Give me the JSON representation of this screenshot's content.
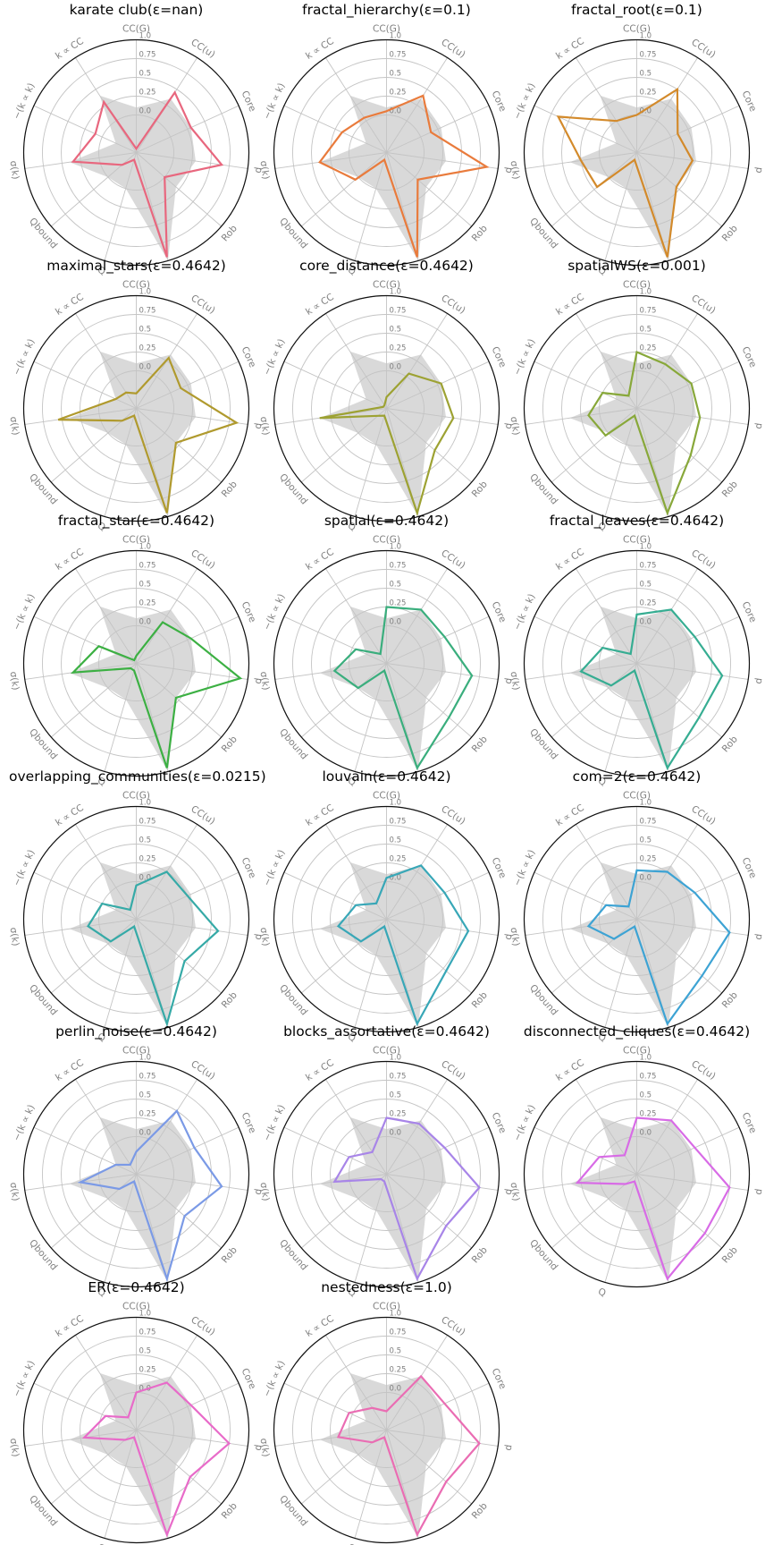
{
  "chart_data": {
    "type": "radar",
    "axes": [
      "CC(G)",
      "CC(u)",
      "Core",
      "d",
      "Rob",
      "",
      "Q",
      "Q_bound",
      "σ(k)",
      "−(k∝k)",
      "k∝CC"
    ],
    "axis_display": [
      "CC(G)",
      "CC(u)",
      "Core",
      "d",
      "Rob",
      "",
      "Q",
      "Qbound",
      "σ(k)",
      "−(k ∝ k)",
      "k ∝ CC"
    ],
    "radial_ticks": [
      "0.0",
      "0.25",
      "0.5",
      "0.75",
      "1.0"
    ],
    "radial_tick_values": [
      0,
      0.25,
      0.5,
      0.75,
      1.0
    ],
    "rlim": [
      -0.5,
      1.0
    ],
    "grid": true,
    "reference_values": [
      0.1,
      0.35,
      0.3,
      0.3,
      0.2,
      1.0,
      0.0,
      0.0,
      0.4,
      -0.2,
      0.4
    ],
    "panels": [
      {
        "title": "karate club(ε=nan)",
        "color": "#e8677e",
        "values": [
          -0.45,
          0.45,
          0.3,
          0.65,
          0.0,
          0.95,
          -0.4,
          -0.25,
          0.35,
          0.1,
          0.3
        ]
      },
      {
        "title": "fractal_hierarchy(ε=0.1)",
        "color": "#e97b3c",
        "values": [
          0.05,
          0.4,
          0.15,
          0.85,
          0.05,
          0.95,
          -0.4,
          0.05,
          0.4,
          0.15,
          0.05
        ]
      },
      {
        "title": "fractal_root(ε=0.1)",
        "color": "#d38a2b",
        "values": [
          0.0,
          0.5,
          0.1,
          0.25,
          0.2,
          0.95,
          -0.4,
          0.2,
          0.25,
          0.65,
          0.0
        ]
      },
      {
        "title": "maximal_stars(ε=0.4642)",
        "color": "#b09a2e",
        "values": [
          -0.3,
          0.3,
          0.15,
          0.85,
          0.2,
          0.95,
          -0.4,
          -0.25,
          0.55,
          -0.2,
          -0.25
        ]
      },
      {
        "title": "core_distance(ε=0.4642)",
        "color": "#9da233",
        "values": [
          -0.35,
          0.05,
          0.3,
          0.4,
          0.35,
          0.95,
          -0.4,
          -0.35,
          0.4,
          -0.45,
          -0.45
        ]
      },
      {
        "title": "spatialWS(ε=0.001)",
        "color": "#88a83a",
        "values": [
          0.25,
          0.2,
          0.3,
          0.35,
          0.45,
          0.95,
          -0.4,
          0.05,
          0.15,
          0.0,
          -0.3
        ]
      },
      {
        "title": "fractal_star(ε=0.4642)",
        "color": "#3cb043",
        "values": [
          -0.4,
          0.15,
          0.3,
          0.9,
          0.2,
          0.95,
          -0.4,
          -0.4,
          0.35,
          0.05,
          -0.45
        ]
      },
      {
        "title": "spatial(ε=0.4642)",
        "color": "#3aae7d",
        "values": [
          0.25,
          0.35,
          0.35,
          0.65,
          0.6,
          0.95,
          -0.4,
          0.0,
          0.2,
          -0.05,
          -0.35
        ]
      },
      {
        "title": "fractal_leaves(ε=0.4642)",
        "color": "#36ad92",
        "values": [
          0.15,
          0.35,
          0.35,
          0.65,
          0.6,
          0.95,
          -0.4,
          -0.05,
          0.25,
          0.0,
          -0.35
        ]
      },
      {
        "title": "overlapping_communities(ε=0.0215)",
        "color": "#36aaa7",
        "values": [
          -0.05,
          0.25,
          0.25,
          0.6,
          0.35,
          0.95,
          -0.4,
          -0.05,
          0.15,
          0.0,
          -0.35
        ]
      },
      {
        "title": "louvain(ε=0.4642)",
        "color": "#38a7b7",
        "values": [
          0.05,
          0.35,
          0.35,
          0.6,
          0.55,
          0.95,
          -0.4,
          -0.05,
          0.15,
          -0.05,
          -0.25
        ]
      },
      {
        "title": "com=2(ε=0.4642)",
        "color": "#3da3d4",
        "values": [
          0.15,
          0.25,
          0.35,
          0.75,
          0.65,
          0.95,
          -0.4,
          -0.1,
          0.15,
          -0.05,
          -0.3
        ]
      },
      {
        "title": "perlin_noise(ε=0.4642)",
        "color": "#7b9ae6",
        "values": [
          -0.2,
          0.5,
          0.35,
          0.65,
          0.35,
          0.95,
          -0.4,
          -0.2,
          0.25,
          -0.2,
          -0.35
        ]
      },
      {
        "title": "blocks_assortative(ε=0.4642)",
        "color": "#a885e8",
        "values": [
          0.25,
          0.3,
          0.35,
          0.75,
          0.55,
          0.95,
          -0.4,
          -0.4,
          0.2,
          0.05,
          -0.15
        ]
      },
      {
        "title": "disconnected_cliques(ε=0.4642)",
        "color": "#d86be6",
        "values": [
          0.25,
          0.35,
          0.35,
          0.75,
          0.7,
          0.95,
          -0.4,
          -0.3,
          0.3,
          0.05,
          -0.2
        ]
      },
      {
        "title": "ER(ε=0.4642)",
        "color": "#e86bc9",
        "values": [
          0.0,
          0.25,
          0.3,
          0.75,
          0.45,
          0.95,
          -0.4,
          -0.3,
          0.2,
          -0.05,
          -0.3
        ]
      },
      {
        "title": "nestedness(ε=1.0)",
        "color": "#ea6db3",
        "values": [
          -0.25,
          0.35,
          0.35,
          0.75,
          0.55,
          0.95,
          -0.4,
          -0.25,
          0.15,
          0.05,
          -0.15
        ]
      }
    ]
  }
}
